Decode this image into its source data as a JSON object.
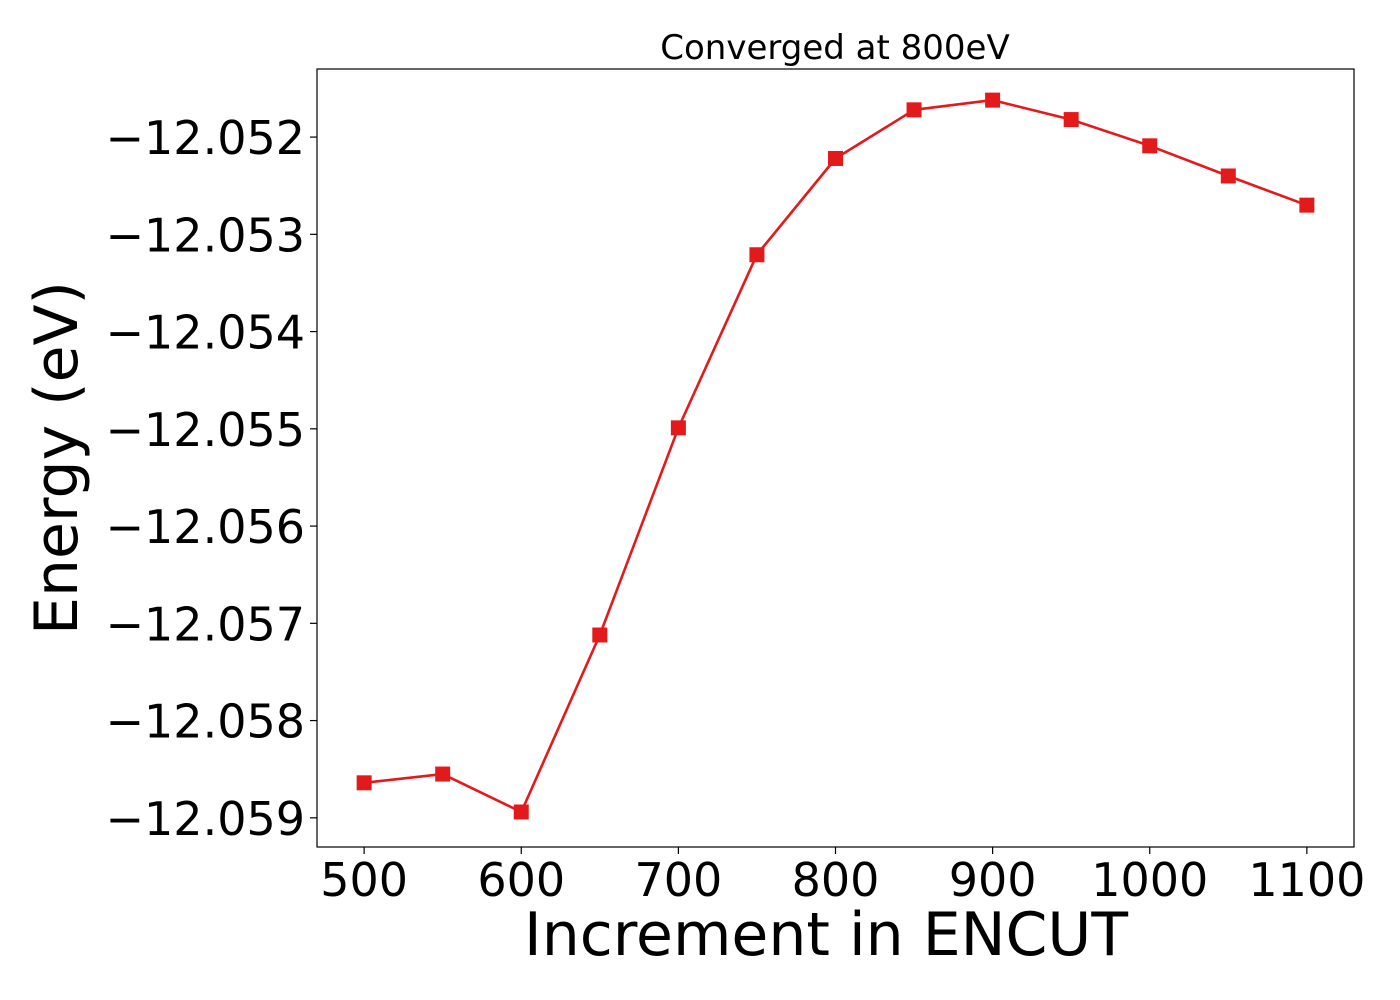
{
  "chart_data": {
    "type": "line",
    "title": "Converged at 800eV",
    "xlabel": "Increment in ENCUT",
    "ylabel": "Energy (eV)",
    "xlim": [
      470,
      1130
    ],
    "ylim": [
      -12.0593,
      -12.0513
    ],
    "xticks": [
      500,
      600,
      700,
      800,
      900,
      1000,
      1100
    ],
    "xtick_labels": [
      "500",
      "600",
      "700",
      "800",
      "900",
      "1000",
      "1100"
    ],
    "yticks": [
      -12.052,
      -12.053,
      -12.054,
      -12.055,
      -12.056,
      -12.057,
      -12.058,
      -12.059
    ],
    "ytick_labels": [
      "−12.052",
      "−12.053",
      "−12.054",
      "−12.055",
      "−12.056",
      "−12.057",
      "−12.058",
      "−12.059"
    ],
    "grid": false,
    "series": [
      {
        "color": "#e31a1c",
        "marker": "square",
        "x": [
          500,
          550,
          600,
          650,
          700,
          750,
          800,
          850,
          900,
          950,
          1000,
          1050,
          1100
        ],
        "y": [
          -12.05864,
          -12.05855,
          -12.05894,
          -12.05712,
          -12.05499,
          -12.05321,
          -12.05222,
          -12.05172,
          -12.05162,
          -12.05182,
          -12.05209,
          -12.0524,
          -12.0527
        ]
      }
    ]
  }
}
